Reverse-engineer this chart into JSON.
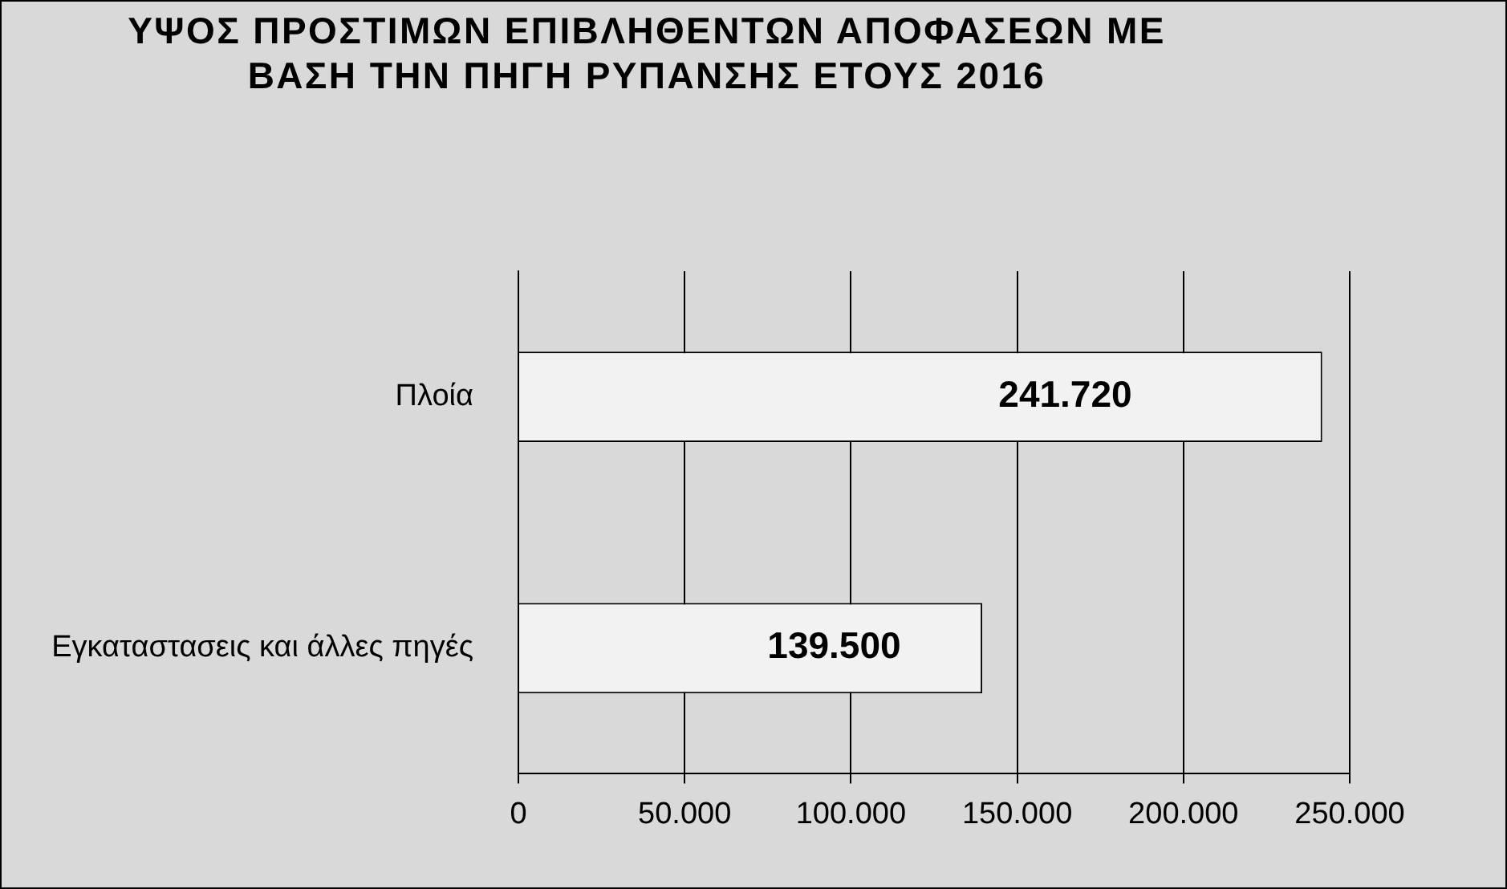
{
  "chart_data": {
    "type": "bar",
    "orientation": "horizontal",
    "title": "ΥΨΟΣ ΠΡΟΣΤΙΜΩΝ ΕΠΙΒΛΗΘΕΝΤΩΝ ΑΠΟΦΑΣΕΩΝ ΜΕ ΒΑΣΗ ΤΗΝ ΠΗΓΗ ΡΥΠΑΝΣΗΣ ΕΤΟΥΣ 2016",
    "categories": [
      "Πλοία",
      "Εγκαταστασεις και άλλες πηγές"
    ],
    "values": [
      241720,
      139500
    ],
    "color": "#f2f2f2",
    "value_labels": [
      "241.720",
      "139.500"
    ],
    "xlim": [
      0,
      250000
    ],
    "xticks": [
      0,
      {
        "value": 50000,
        "label": "50.000"
      },
      {
        "value": 100000,
        "label": "100.000"
      },
      {
        "value": 150000,
        "label": "150.000"
      },
      {
        "value": 200000,
        "label": "200.000"
      },
      {
        "value": 250000,
        "label": "250.000"
      }
    ],
    "grid": "x"
  }
}
